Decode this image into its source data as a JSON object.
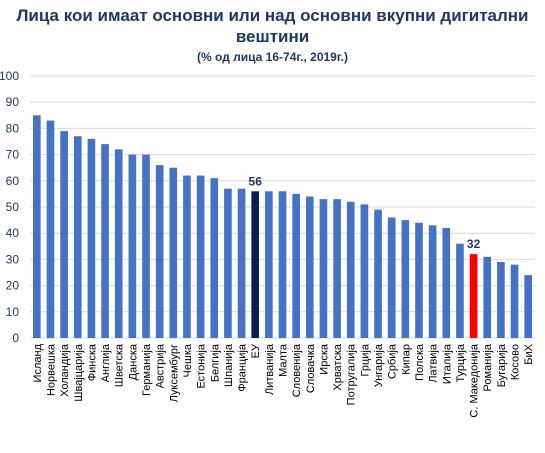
{
  "chart_data": {
    "type": "bar",
    "title_line1": "Лица кои имаат основни или над основни вкупни дигитални",
    "title_line2": "вештини",
    "subtitle": "(% од лица 16-74г., 2019г.)",
    "xlabel": "",
    "ylabel": "",
    "ylim": [
      0,
      100
    ],
    "yticks": [
      "0",
      "10",
      "20",
      "30",
      "40",
      "50",
      "60",
      "70",
      "80",
      "90",
      "100"
    ],
    "categories": [
      "Исланд",
      "Норвешка",
      "Холандија",
      "Швајцарија",
      "Финска",
      "Англија",
      "Шветска",
      "Данска",
      "Германија",
      "Австрија",
      "Луксембург",
      "Чешка",
      "Естонија",
      "Белгија",
      "Шпанија",
      "Франција",
      "ЕУ",
      "Литванија",
      "Малта",
      "Словенија",
      "Словачка",
      "Ирска",
      "Хрватска",
      "Потругалија",
      "Грција",
      "Унгарија",
      "Србија",
      "Кипар",
      "Полска",
      "Латвија",
      "Италија",
      "Турција",
      "С. Македонија",
      "Романија",
      "Бугарија",
      "Косово",
      "БиХ"
    ],
    "values": [
      85,
      83,
      79,
      77,
      76,
      74,
      72,
      70,
      70,
      66,
      65,
      62,
      62,
      61,
      57,
      57,
      56,
      56,
      56,
      55,
      54,
      53,
      53,
      52,
      51,
      49,
      46,
      45,
      44,
      43,
      42,
      36,
      32,
      31,
      29,
      28,
      24
    ],
    "data_labels": [
      {
        "category": "ЕУ",
        "text": "56"
      },
      {
        "category": "С. Македонија",
        "text": "32"
      }
    ],
    "colors": {
      "default": "#4472c4",
      "eu": "#0d1c4f",
      "mk": "#ff0000",
      "grid": "#d9d9d9",
      "text": "#1f3864"
    },
    "grid": true,
    "legend": "none"
  }
}
